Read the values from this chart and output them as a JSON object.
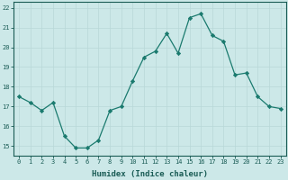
{
  "x": [
    0,
    1,
    2,
    3,
    4,
    5,
    6,
    7,
    8,
    9,
    10,
    11,
    12,
    13,
    14,
    15,
    16,
    17,
    18,
    19,
    20,
    21,
    22,
    23
  ],
  "y": [
    17.5,
    17.2,
    16.8,
    17.2,
    15.5,
    14.9,
    14.9,
    15.3,
    16.8,
    17.0,
    18.3,
    19.5,
    19.8,
    20.7,
    19.7,
    21.5,
    21.7,
    20.6,
    20.3,
    18.6,
    18.7,
    17.5,
    17.0,
    16.9
  ],
  "line_color": "#1a7a6e",
  "marker_color": "#1a7a6e",
  "bg_color": "#cce8e8",
  "grid_color": "#b8d8d8",
  "xlabel": "Humidex (Indice chaleur)",
  "ylim": [
    14.5,
    22.3
  ],
  "xlim": [
    -0.5,
    23.5
  ],
  "yticks": [
    15,
    16,
    17,
    18,
    19,
    20,
    21,
    22
  ],
  "xticks": [
    0,
    1,
    2,
    3,
    4,
    5,
    6,
    7,
    8,
    9,
    10,
    11,
    12,
    13,
    14,
    15,
    16,
    17,
    18,
    19,
    20,
    21,
    22,
    23
  ],
  "label_color": "#1a5c55",
  "tick_color": "#1a5c55",
  "spine_color": "#1a5c55",
  "tick_fontsize": 5.0,
  "xlabel_fontsize": 6.5,
  "linewidth": 0.9,
  "markersize": 2.2
}
